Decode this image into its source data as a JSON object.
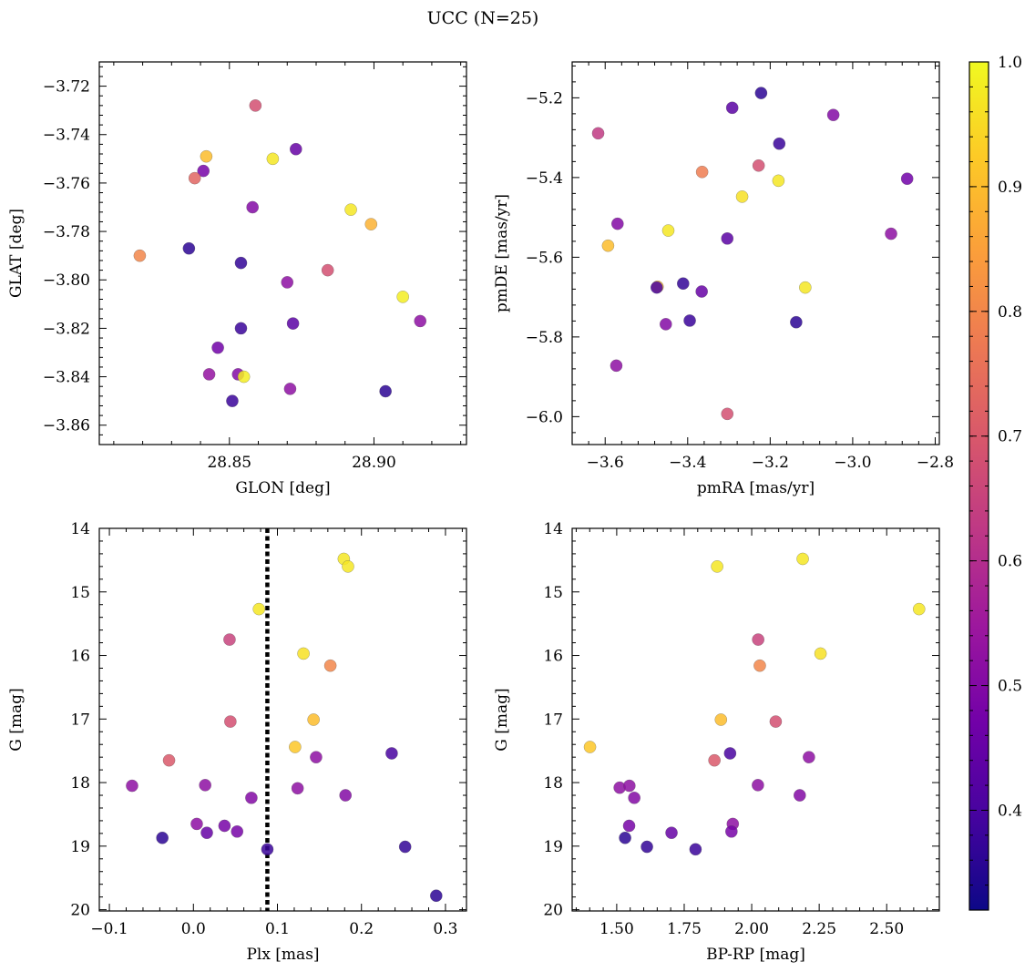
{
  "figure": {
    "title": "UCC (N=25)"
  },
  "colorbar": {
    "colormap": "plasma",
    "range": [
      0.32,
      1.0
    ],
    "ticks": [
      0.4,
      0.5,
      0.6,
      0.7,
      0.8,
      0.9,
      1.0
    ],
    "tick_labels": [
      "0.4",
      "0.5",
      "0.6",
      "0.7",
      "0.8",
      "0.9",
      "1.0"
    ],
    "stops": [
      "#0d0887",
      "#46039f",
      "#7201a8",
      "#9c179e",
      "#bd3786",
      "#d8576b",
      "#ed7953",
      "#fb9f3a",
      "#fdca26",
      "#f0f921"
    ]
  },
  "chart_data": [
    {
      "type": "scatter",
      "title": "",
      "xlabel": "GLON [deg]",
      "ylabel": "GLAT [deg]",
      "xlim": [
        28.805,
        28.932
      ],
      "ylim": [
        -3.868,
        -3.71
      ],
      "yinvert": false,
      "xticks": [
        28.85,
        28.9
      ],
      "xtick_labels": [
        "28.85",
        "28.90"
      ],
      "yticks": [
        -3.72,
        -3.74,
        -3.76,
        -3.78,
        -3.8,
        -3.82,
        -3.84,
        -3.86
      ],
      "ytick_labels": [
        "−3.72",
        "−3.74",
        "−3.76",
        "−3.78",
        "−3.80",
        "−3.82",
        "−3.84",
        "−3.86"
      ],
      "points": [
        {
          "x": 28.859,
          "y": -3.728,
          "c": 0.68
        },
        {
          "x": 28.842,
          "y": -3.749,
          "c": 0.9
        },
        {
          "x": 28.865,
          "y": -3.75,
          "c": 0.97
        },
        {
          "x": 28.873,
          "y": -3.746,
          "c": 0.45
        },
        {
          "x": 28.841,
          "y": -3.755,
          "c": 0.48
        },
        {
          "x": 28.838,
          "y": -3.758,
          "c": 0.73
        },
        {
          "x": 28.858,
          "y": -3.77,
          "c": 0.5
        },
        {
          "x": 28.892,
          "y": -3.771,
          "c": 0.97
        },
        {
          "x": 28.899,
          "y": -3.777,
          "c": 0.88
        },
        {
          "x": 28.819,
          "y": -3.79,
          "c": 0.8
        },
        {
          "x": 28.836,
          "y": -3.787,
          "c": 0.36
        },
        {
          "x": 28.854,
          "y": -3.793,
          "c": 0.37
        },
        {
          "x": 28.87,
          "y": -3.801,
          "c": 0.52
        },
        {
          "x": 28.884,
          "y": -3.796,
          "c": 0.68
        },
        {
          "x": 28.91,
          "y": -3.807,
          "c": 0.98
        },
        {
          "x": 28.916,
          "y": -3.817,
          "c": 0.52
        },
        {
          "x": 28.854,
          "y": -3.82,
          "c": 0.38
        },
        {
          "x": 28.872,
          "y": -3.818,
          "c": 0.43
        },
        {
          "x": 28.846,
          "y": -3.828,
          "c": 0.47
        },
        {
          "x": 28.843,
          "y": -3.839,
          "c": 0.53
        },
        {
          "x": 28.853,
          "y": -3.839,
          "c": 0.5
        },
        {
          "x": 28.855,
          "y": -3.84,
          "c": 0.98
        },
        {
          "x": 28.871,
          "y": -3.845,
          "c": 0.52
        },
        {
          "x": 28.851,
          "y": -3.85,
          "c": 0.38
        },
        {
          "x": 28.904,
          "y": -3.846,
          "c": 0.36
        }
      ]
    },
    {
      "type": "scatter",
      "title": "",
      "xlabel": "pmRA [mas/yr]",
      "ylabel": "pmDE [mas/yr]",
      "xlim": [
        -3.68,
        -2.79
      ],
      "ylim": [
        -6.07,
        -5.11
      ],
      "yinvert": false,
      "xticks": [
        -3.6,
        -3.4,
        -3.2,
        -3.0,
        -2.8
      ],
      "xtick_labels": [
        "−3.6",
        "−3.4",
        "−3.2",
        "−3.0",
        "−2.8"
      ],
      "yticks": [
        -5.2,
        -5.4,
        -5.6,
        -5.8,
        -6.0
      ],
      "ytick_labels": [
        "−5.2",
        "−5.4",
        "−5.6",
        "−5.8",
        "−6.0"
      ],
      "points": [
        {
          "x": -3.222,
          "y": -5.188,
          "c": 0.36
        },
        {
          "x": -3.292,
          "y": -5.225,
          "c": 0.43
        },
        {
          "x": -3.047,
          "y": -5.243,
          "c": 0.5
        },
        {
          "x": -3.617,
          "y": -5.289,
          "c": 0.63
        },
        {
          "x": -3.178,
          "y": -5.315,
          "c": 0.38
        },
        {
          "x": -3.228,
          "y": -5.37,
          "c": 0.68
        },
        {
          "x": -3.365,
          "y": -5.386,
          "c": 0.78
        },
        {
          "x": -2.868,
          "y": -5.403,
          "c": 0.47
        },
        {
          "x": -3.18,
          "y": -5.408,
          "c": 0.97
        },
        {
          "x": -3.268,
          "y": -5.448,
          "c": 0.96
        },
        {
          "x": -3.57,
          "y": -5.516,
          "c": 0.5
        },
        {
          "x": -3.447,
          "y": -5.533,
          "c": 0.97
        },
        {
          "x": -2.907,
          "y": -5.541,
          "c": 0.52
        },
        {
          "x": -3.304,
          "y": -5.553,
          "c": 0.43
        },
        {
          "x": -3.593,
          "y": -5.571,
          "c": 0.9
        },
        {
          "x": -3.473,
          "y": -5.674,
          "c": 0.9
        },
        {
          "x": -3.475,
          "y": -5.676,
          "c": 0.4
        },
        {
          "x": -3.411,
          "y": -5.666,
          "c": 0.37
        },
        {
          "x": -3.115,
          "y": -5.676,
          "c": 0.97
        },
        {
          "x": -3.366,
          "y": -5.686,
          "c": 0.45
        },
        {
          "x": -3.395,
          "y": -5.759,
          "c": 0.38
        },
        {
          "x": -3.453,
          "y": -5.768,
          "c": 0.5
        },
        {
          "x": -3.137,
          "y": -5.763,
          "c": 0.36
        },
        {
          "x": -3.573,
          "y": -5.872,
          "c": 0.52
        },
        {
          "x": -3.304,
          "y": -5.993,
          "c": 0.68
        }
      ]
    },
    {
      "type": "scatter",
      "title": "",
      "xlabel": "Plx [mas]",
      "ylabel": "G [mag]",
      "xlim": [
        -0.112,
        0.325
      ],
      "ylim": [
        20.02,
        14.0
      ],
      "yinvert": true,
      "xticks": [
        -0.1,
        0.0,
        0.1,
        0.2,
        0.3
      ],
      "xtick_labels": [
        "−0.1",
        "0.0",
        "0.1",
        "0.2",
        "0.3"
      ],
      "yticks": [
        14,
        15,
        16,
        17,
        18,
        19,
        20
      ],
      "ytick_labels": [
        "14",
        "15",
        "16",
        "17",
        "18",
        "19",
        "20"
      ],
      "vline": 0.088,
      "points": [
        {
          "x": 0.179,
          "y": 14.48,
          "c": 0.97
        },
        {
          "x": 0.184,
          "y": 14.6,
          "c": 0.97
        },
        {
          "x": 0.078,
          "y": 15.27,
          "c": 0.97
        },
        {
          "x": 0.043,
          "y": 15.75,
          "c": 0.65
        },
        {
          "x": 0.131,
          "y": 15.97,
          "c": 0.96
        },
        {
          "x": 0.163,
          "y": 16.16,
          "c": 0.8
        },
        {
          "x": 0.044,
          "y": 17.04,
          "c": 0.68
        },
        {
          "x": 0.143,
          "y": 17.01,
          "c": 0.9
        },
        {
          "x": 0.121,
          "y": 17.44,
          "c": 0.92
        },
        {
          "x": -0.029,
          "y": 17.65,
          "c": 0.7
        },
        {
          "x": 0.146,
          "y": 17.6,
          "c": 0.52
        },
        {
          "x": 0.236,
          "y": 17.54,
          "c": 0.4
        },
        {
          "x": -0.073,
          "y": 18.05,
          "c": 0.52
        },
        {
          "x": 0.014,
          "y": 18.04,
          "c": 0.52
        },
        {
          "x": 0.124,
          "y": 18.09,
          "c": 0.52
        },
        {
          "x": 0.069,
          "y": 18.24,
          "c": 0.5
        },
        {
          "x": 0.181,
          "y": 18.2,
          "c": 0.5
        },
        {
          "x": 0.004,
          "y": 18.65,
          "c": 0.52
        },
        {
          "x": 0.037,
          "y": 18.68,
          "c": 0.48
        },
        {
          "x": 0.016,
          "y": 18.79,
          "c": 0.45
        },
        {
          "x": 0.052,
          "y": 18.77,
          "c": 0.48
        },
        {
          "x": -0.037,
          "y": 18.87,
          "c": 0.36
        },
        {
          "x": 0.252,
          "y": 19.01,
          "c": 0.37
        },
        {
          "x": 0.088,
          "y": 19.05,
          "c": 0.38
        },
        {
          "x": 0.289,
          "y": 19.78,
          "c": 0.36
        }
      ]
    },
    {
      "type": "scatter",
      "title": "",
      "xlabel": "BP-RP [mag]",
      "ylabel": "G [mag]",
      "xlim": [
        1.335,
        2.695
      ],
      "ylim": [
        20.02,
        14.0
      ],
      "yinvert": true,
      "xticks": [
        1.5,
        1.75,
        2.0,
        2.25,
        2.5
      ],
      "xtick_labels": [
        "1.50",
        "1.75",
        "2.00",
        "2.25",
        "2.50"
      ],
      "yticks": [
        14,
        15,
        16,
        17,
        18,
        19,
        20
      ],
      "ytick_labels": [
        "14",
        "15",
        "16",
        "17",
        "18",
        "19",
        "20"
      ],
      "points": [
        {
          "x": 2.189,
          "y": 14.48,
          "c": 0.97
        },
        {
          "x": 1.872,
          "y": 14.6,
          "c": 0.97
        },
        {
          "x": 2.62,
          "y": 15.27,
          "c": 0.97
        },
        {
          "x": 2.024,
          "y": 15.75,
          "c": 0.65
        },
        {
          "x": 2.255,
          "y": 15.97,
          "c": 0.96
        },
        {
          "x": 2.03,
          "y": 16.16,
          "c": 0.8
        },
        {
          "x": 2.089,
          "y": 17.04,
          "c": 0.68
        },
        {
          "x": 1.886,
          "y": 17.01,
          "c": 0.9
        },
        {
          "x": 1.401,
          "y": 17.44,
          "c": 0.92
        },
        {
          "x": 1.862,
          "y": 17.65,
          "c": 0.7
        },
        {
          "x": 2.212,
          "y": 17.6,
          "c": 0.52
        },
        {
          "x": 1.92,
          "y": 17.54,
          "c": 0.4
        },
        {
          "x": 1.511,
          "y": 18.08,
          "c": 0.52
        },
        {
          "x": 1.547,
          "y": 18.05,
          "c": 0.52
        },
        {
          "x": 2.023,
          "y": 18.04,
          "c": 0.52
        },
        {
          "x": 1.565,
          "y": 18.24,
          "c": 0.5
        },
        {
          "x": 2.178,
          "y": 18.2,
          "c": 0.5
        },
        {
          "x": 1.546,
          "y": 18.68,
          "c": 0.48
        },
        {
          "x": 1.93,
          "y": 18.65,
          "c": 0.52
        },
        {
          "x": 1.703,
          "y": 18.79,
          "c": 0.45
        },
        {
          "x": 1.925,
          "y": 18.77,
          "c": 0.48
        },
        {
          "x": 1.531,
          "y": 18.87,
          "c": 0.36
        },
        {
          "x": 1.612,
          "y": 19.01,
          "c": 0.37
        },
        {
          "x": 1.792,
          "y": 19.05,
          "c": 0.38
        }
      ]
    }
  ]
}
